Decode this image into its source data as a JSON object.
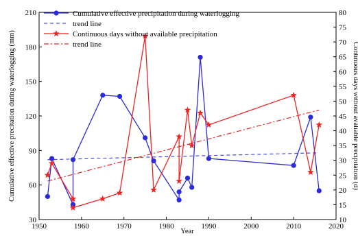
{
  "chart_data": {
    "type": "line",
    "xlabel": "Year",
    "ylabel_left": "Cumulative effective precitation during waterlogging (mm)",
    "ylabel_right": "Continuous days without avaliable precipitation (d)",
    "xlim": [
      1950,
      2020
    ],
    "ylim_left": [
      30,
      210
    ],
    "ylim_right": [
      10,
      80
    ],
    "x_ticks": [
      1950,
      1960,
      1970,
      1980,
      1990,
      2000,
      2010,
      2020
    ],
    "y_left_ticks": [
      30,
      60,
      90,
      120,
      150,
      180,
      210
    ],
    "y_right_ticks": [
      10,
      15,
      20,
      25,
      30,
      35,
      40,
      45,
      50,
      55,
      60,
      65,
      70,
      75,
      80
    ],
    "legend_position": "top-left",
    "series": [
      {
        "name": "Cumulative effective precipitation during waterlogging",
        "axis": "left",
        "color": "#2a2ad8",
        "marker": "circle",
        "x": [
          1952,
          1953,
          1958,
          1958,
          1965,
          1969,
          1975,
          1977,
          1983,
          1983,
          1985,
          1986,
          1988,
          1990,
          2010,
          2014,
          2016
        ],
        "y": [
          50,
          83,
          43,
          82,
          138,
          137,
          101,
          81,
          47,
          54,
          66,
          58,
          171,
          83,
          77,
          119,
          55
        ]
      },
      {
        "name": "Continuous days without available precipitation",
        "axis": "right",
        "color": "#ee2222",
        "marker": "star",
        "x": [
          1952,
          1953,
          1958,
          1958,
          1965,
          1969,
          1975,
          1977,
          1983,
          1983,
          1985,
          1986,
          1988,
          1990,
          2010,
          2014,
          2016
        ],
        "y": [
          25,
          29,
          17,
          14,
          17,
          19,
          72,
          20,
          38,
          23,
          47,
          35,
          46,
          42,
          52,
          26,
          42
        ]
      }
    ],
    "trend_lines": [
      {
        "name": "trend line",
        "axis": "left",
        "color": "#4a4aee",
        "style": "dashed",
        "x": [
          1952,
          2016
        ],
        "y": [
          82,
          88
        ]
      },
      {
        "name": "trend line",
        "axis": "right",
        "color": "#ee2222",
        "style": "dash-dot",
        "x": [
          1952,
          2016
        ],
        "y": [
          23,
          47
        ]
      }
    ]
  }
}
